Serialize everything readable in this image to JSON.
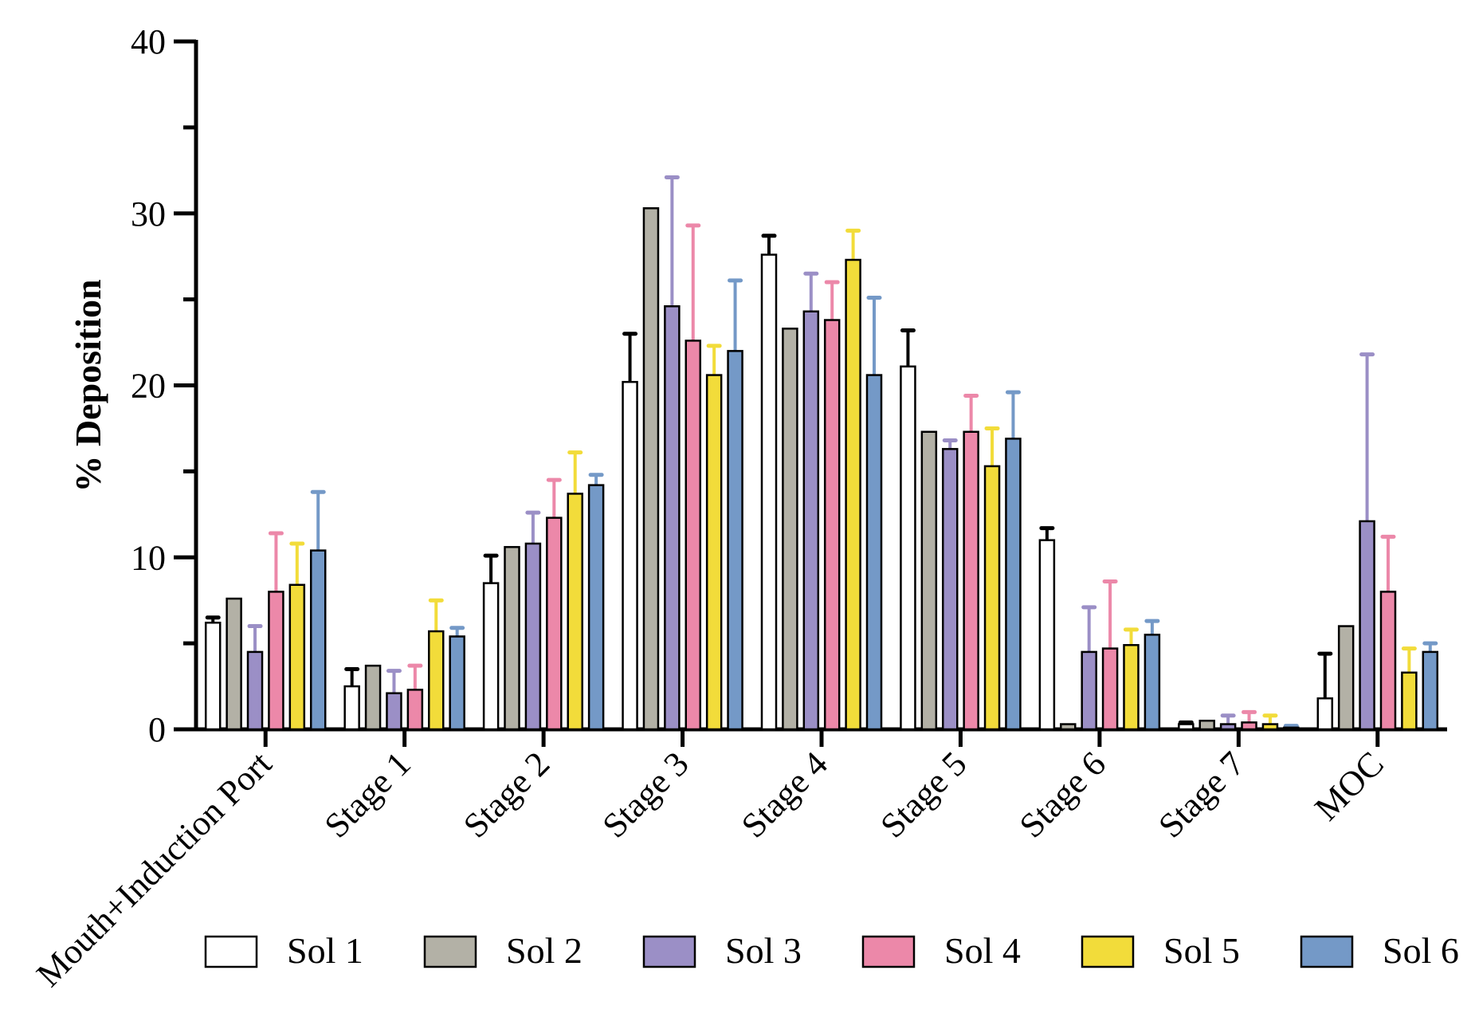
{
  "chart_data": {
    "type": "bar",
    "title": "",
    "xlabel": "",
    "ylabel": "% Deposition",
    "ylim": [
      0,
      40
    ],
    "yticks": [
      0,
      10,
      20,
      30,
      40
    ],
    "grid": false,
    "legend_position": "bottom",
    "categories": [
      "Mouth+Induction Port",
      "Stage 1",
      "Stage 2",
      "Stage 3",
      "Stage 4",
      "Stage 5",
      "Stage 6",
      "Stage 7",
      "MOC"
    ],
    "series": [
      {
        "name": "Sol 1",
        "color": "#ffffff",
        "error_color": "#000000",
        "values": [
          6.2,
          2.5,
          8.5,
          20.2,
          27.6,
          21.1,
          11.0,
          0.3,
          1.8
        ],
        "errors": [
          0.3,
          1.0,
          1.6,
          2.8,
          1.1,
          2.1,
          0.7,
          0.1,
          2.6
        ]
      },
      {
        "name": "Sol 2",
        "color": "#b3b1a6",
        "error_color": "#8f8d84",
        "values": [
          7.6,
          3.7,
          10.6,
          30.3,
          23.3,
          17.3,
          0.3,
          0.5,
          6.0
        ],
        "errors": [
          0,
          0,
          0,
          0,
          0,
          0,
          0,
          0,
          0
        ]
      },
      {
        "name": "Sol 3",
        "color": "#9b8fc6",
        "error_color": "#9b8fc6",
        "values": [
          4.5,
          2.1,
          10.8,
          24.6,
          24.3,
          16.3,
          4.5,
          0.3,
          12.1
        ],
        "errors": [
          1.5,
          1.3,
          1.8,
          7.5,
          2.2,
          0.5,
          2.6,
          0.5,
          9.7
        ]
      },
      {
        "name": "Sol 4",
        "color": "#ec88a9",
        "error_color": "#ec88a9",
        "values": [
          8.0,
          2.3,
          12.3,
          22.6,
          23.8,
          17.3,
          4.7,
          0.4,
          8.0
        ],
        "errors": [
          3.4,
          1.4,
          2.2,
          6.7,
          2.2,
          2.1,
          3.9,
          0.6,
          3.2
        ]
      },
      {
        "name": "Sol 5",
        "color": "#f2dc3a",
        "error_color": "#f2dc3a",
        "values": [
          8.4,
          5.7,
          13.7,
          20.6,
          27.3,
          15.3,
          4.9,
          0.3,
          3.3
        ],
        "errors": [
          2.4,
          1.8,
          2.4,
          1.7,
          1.7,
          2.2,
          0.9,
          0.5,
          1.4
        ]
      },
      {
        "name": "Sol 6",
        "color": "#7499c7",
        "error_color": "#7499c7",
        "values": [
          10.4,
          5.4,
          14.2,
          22.0,
          20.6,
          16.9,
          5.5,
          0.1,
          4.5
        ],
        "errors": [
          3.4,
          0.5,
          0.6,
          4.1,
          4.5,
          2.7,
          0.8,
          0.1,
          0.5
        ]
      }
    ]
  }
}
